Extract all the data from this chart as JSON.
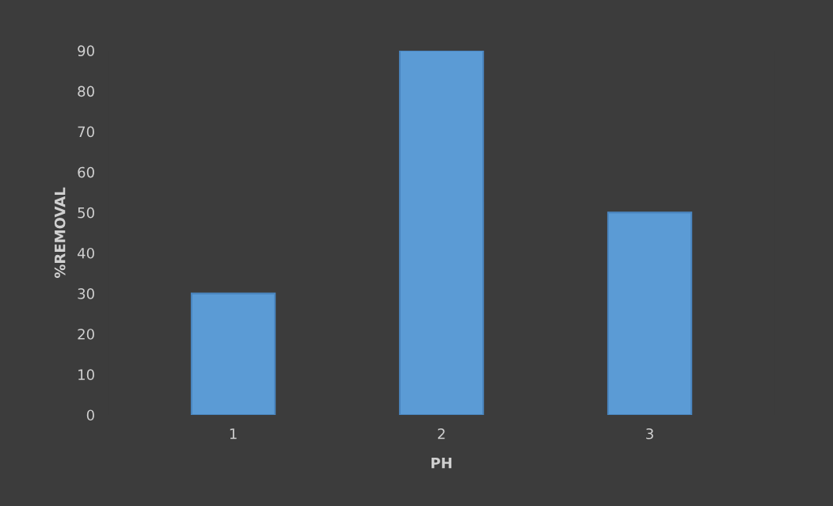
{
  "chart_data": {
    "type": "bar",
    "xlabel": "PH",
    "ylabel": "%REMOVAL",
    "categories": [
      "1",
      "2",
      "3"
    ],
    "values": [
      30,
      90,
      50
    ],
    "color": "#5b9bd5",
    "ylim": [
      0,
      90
    ],
    "yticks": [
      0,
      10,
      20,
      30,
      40,
      50,
      60,
      70,
      80,
      90
    ],
    "grid": false
  }
}
